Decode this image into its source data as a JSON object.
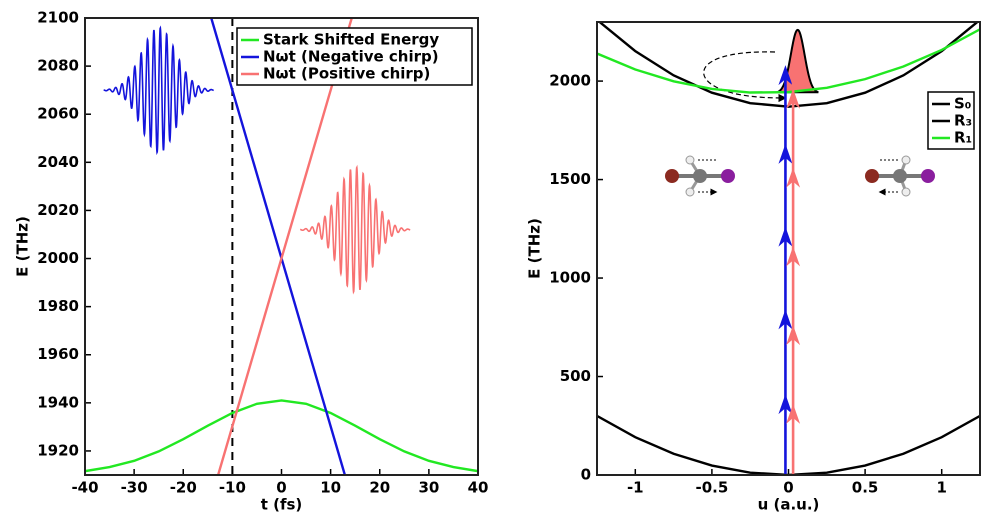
{
  "chart_data": [
    {
      "type": "line",
      "xlabel": "t (fs)",
      "ylabel": "E (THz)",
      "xlim": [
        -40,
        40
      ],
      "ylim": [
        1910,
        2100
      ],
      "xticks": [
        -40,
        -30,
        -20,
        -10,
        0,
        10,
        20,
        30,
        40
      ],
      "yticks": [
        1920,
        1940,
        1960,
        1980,
        2000,
        2020,
        2040,
        2060,
        2080,
        2100
      ],
      "legend": "upper right",
      "series": [
        {
          "name": "Stark Shifted Energy",
          "color": "#22e822",
          "x": [
            -40,
            -35,
            -30,
            -25,
            -20,
            -15,
            -10,
            -5,
            0,
            5,
            10,
            15,
            20,
            25,
            30,
            35,
            40
          ],
          "values": [
            1911.6,
            1913.3,
            1915.9,
            1919.8,
            1924.9,
            1930.5,
            1935.8,
            1939.6,
            1941,
            1939.6,
            1935.8,
            1930.5,
            1924.9,
            1919.8,
            1915.9,
            1913.3,
            1911.6
          ]
        },
        {
          "name": "Nωt (Negative chirp)",
          "color": "#1414dc",
          "x": [
            -14.3,
            12.9
          ],
          "values": [
            2100,
            1910
          ]
        },
        {
          "name": "Nωt (Positive chirp)",
          "color": "#f87272",
          "x": [
            -12.9,
            14.3
          ],
          "values": [
            1910,
            2100
          ]
        }
      ],
      "vline": -10,
      "wavepackets": [
        {
          "color": "#1414dc",
          "center": -25,
          "width": 3.5,
          "baseline": 2070,
          "amplitude": 26,
          "period": 1.3
        },
        {
          "color": "#f87272",
          "center": 15,
          "width": 3.5,
          "baseline": 2012,
          "amplitude": 26,
          "period": 1.3
        }
      ]
    },
    {
      "type": "line",
      "xlabel": "u (a.u.)",
      "ylabel": "E (THz)",
      "xlim": [
        -1.25,
        1.25
      ],
      "ylim": [
        0,
        2300
      ],
      "xticks": [
        -1,
        -0.5,
        0,
        0.5,
        1
      ],
      "yticks": [
        0,
        500,
        1000,
        1500,
        2000
      ],
      "legend": "upper right",
      "series": [
        {
          "name": "S₀",
          "color": "#000000",
          "x": [
            -1.25,
            -1,
            -0.75,
            -0.5,
            -0.25,
            0,
            0.25,
            0.5,
            0.75,
            1,
            1.25
          ],
          "values": [
            300,
            192,
            108,
            48,
            12,
            0,
            12,
            48,
            108,
            192,
            300
          ]
        },
        {
          "name": "R₃",
          "color": "#000000",
          "x": [
            -1.25,
            -1,
            -0.75,
            -0.5,
            -0.25,
            0,
            0.25,
            0.5,
            0.75,
            1,
            1.25
          ],
          "values": [
            2311,
            2152,
            2029,
            1941,
            1888,
            1870,
            1888,
            1941,
            2029,
            2152,
            2311
          ]
        },
        {
          "name": "R₁",
          "color": "#22e822",
          "x": [
            -1.25,
            -1,
            -0.75,
            -0.5,
            -0.25,
            0,
            0.25,
            0.5,
            0.75,
            1,
            1.25
          ],
          "values": [
            2140,
            2059,
            1999,
            1960,
            1942,
            1944,
            1966,
            2010,
            2074,
            2158,
            2263
          ]
        }
      ],
      "arrows": [
        {
          "color": "#1414dc",
          "x": -0.02,
          "y": [
            0,
            2060
          ],
          "heads": [
            350,
            780,
            1200,
            1620,
            2020
          ]
        },
        {
          "color": "#f87272",
          "x": 0.03,
          "y": [
            0,
            2060
          ],
          "heads": [
            300,
            700,
            1100,
            1500,
            1900
          ]
        }
      ],
      "pulse": {
        "color": "#f87272",
        "center": 0.06,
        "width": 0.045,
        "baseline": 1940,
        "peak": 2260
      }
    }
  ]
}
